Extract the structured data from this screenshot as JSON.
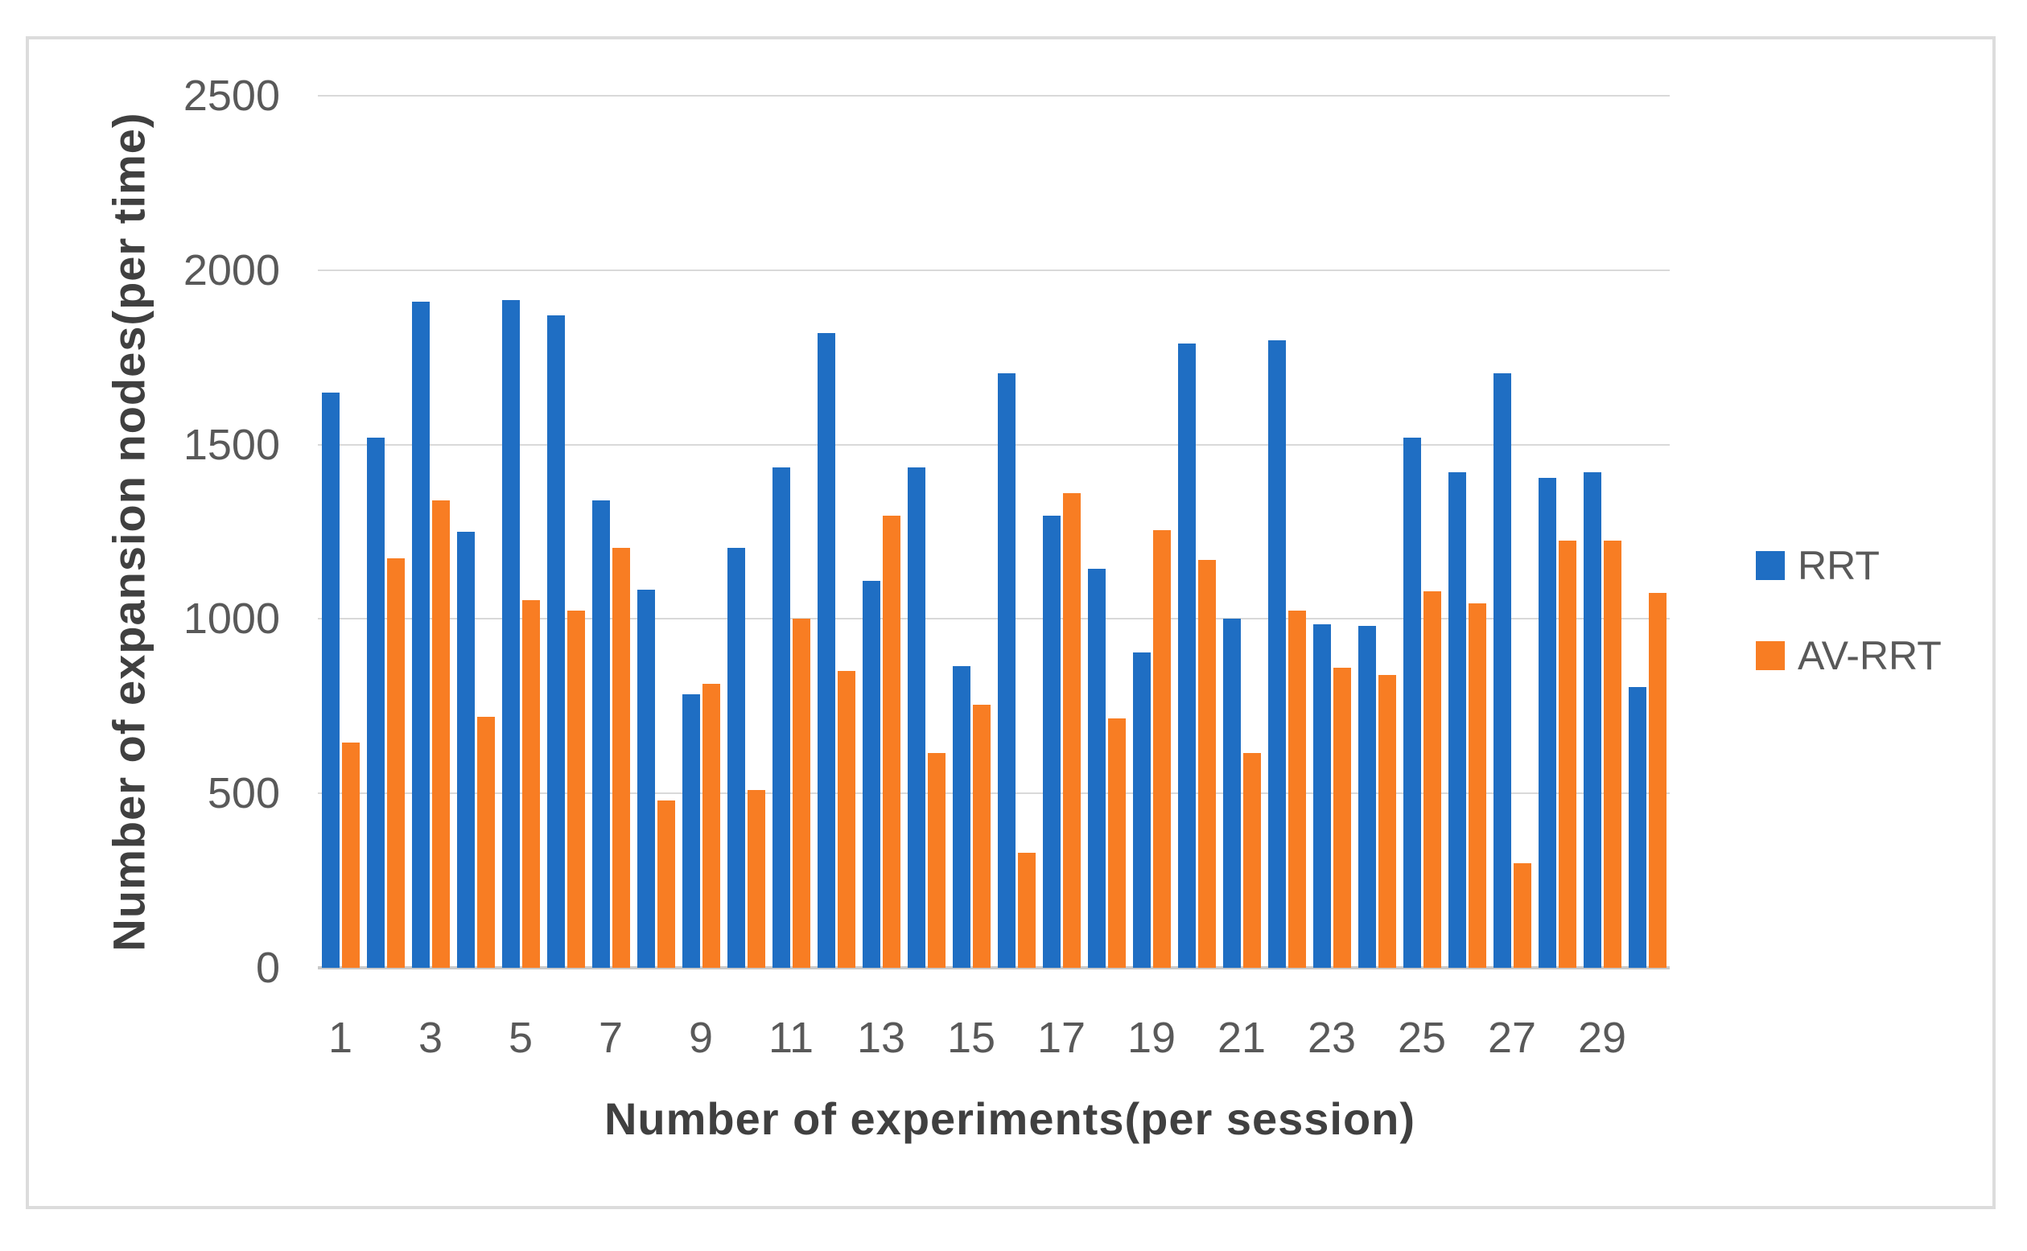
{
  "chart_data": {
    "type": "bar",
    "title": "",
    "xlabel": "Number of experiments(per session)",
    "ylabel": "Number of expansion nodes(per time)",
    "categories": [
      1,
      2,
      3,
      4,
      5,
      6,
      7,
      8,
      9,
      10,
      11,
      12,
      13,
      14,
      15,
      16,
      17,
      18,
      19,
      20,
      21,
      22,
      23,
      24,
      25,
      26,
      27,
      28,
      29,
      30
    ],
    "x_tick_labels": [
      "1",
      "3",
      "5",
      "7",
      "9",
      "11",
      "13",
      "15",
      "17",
      "19",
      "21",
      "23",
      "25",
      "27",
      "29"
    ],
    "y_tick_labels": [
      "0",
      "500",
      "1000",
      "1500",
      "2000",
      "2500"
    ],
    "ylim": [
      0,
      2500
    ],
    "ytick_step": 500,
    "grid": true,
    "legend_position": "right",
    "series": [
      {
        "name": "RRT",
        "color": "#1f6ec3",
        "values": [
          1650,
          1520,
          1910,
          1250,
          1915,
          1870,
          1340,
          1085,
          785,
          1205,
          1435,
          1820,
          1110,
          1435,
          865,
          1705,
          1295,
          1145,
          905,
          1790,
          1000,
          1800,
          985,
          980,
          1520,
          1420,
          1705,
          1405,
          1420,
          805
        ]
      },
      {
        "name": "AV-RRT",
        "color": "#f87d23",
        "values": [
          645,
          1175,
          1340,
          720,
          1055,
          1025,
          1205,
          480,
          815,
          510,
          1000,
          850,
          1295,
          615,
          755,
          330,
          1360,
          715,
          1255,
          1170,
          615,
          1025,
          860,
          840,
          1080,
          1045,
          300,
          1225,
          1225,
          1075
        ]
      }
    ]
  },
  "colors": {
    "rrt_blue": "#1f6ec3",
    "avrrt_orange": "#f87d23",
    "gridline": "#d9d9d9",
    "axis_line": "#c9c9c9",
    "tick_text": "#595959",
    "title_text": "#404040",
    "frame_border": "#dcdcdc"
  },
  "legend": {
    "items": [
      {
        "label": "RRT",
        "color": "#1f6ec3"
      },
      {
        "label": "AV-RRT",
        "color": "#f87d23"
      }
    ]
  }
}
